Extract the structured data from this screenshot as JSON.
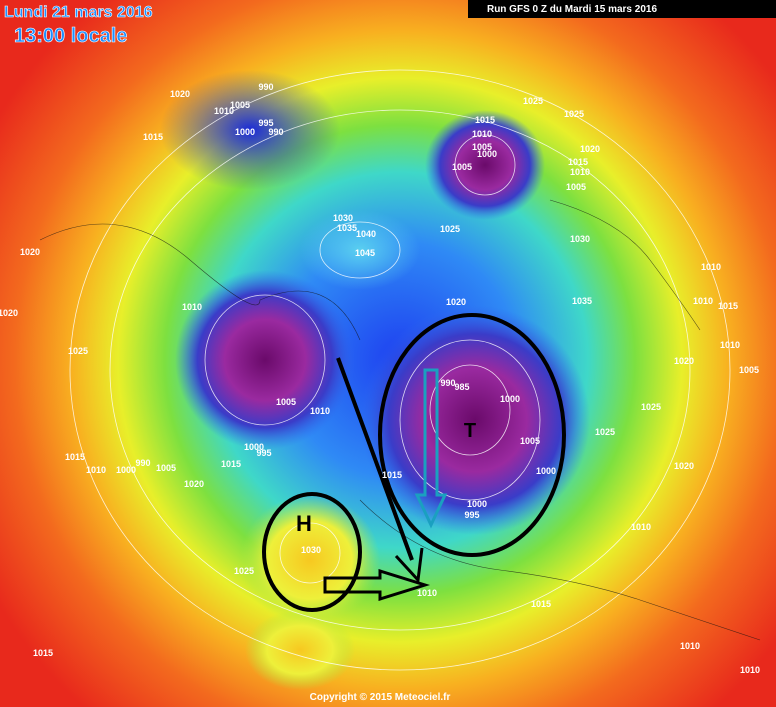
{
  "header": {
    "date": "Lundi 21 mars 2016",
    "time": "13:00 locale",
    "run": "Run GFS 0 Z du Mardi 15 mars 2016"
  },
  "map": {
    "high_label": "H",
    "low_label": "T",
    "isobar_labels": [
      1020,
      1005,
      990,
      1010,
      995,
      1000,
      990,
      1015,
      1025,
      1015,
      1010,
      1005,
      1000,
      1005,
      1025,
      1020,
      1015,
      1010,
      1005,
      1030,
      1030,
      1035,
      1040,
      1025,
      1045,
      1020,
      1010,
      1035,
      1020,
      1010,
      1010,
      1015,
      1020,
      1025,
      1010,
      1005,
      1020,
      990,
      985,
      1000,
      1005,
      1010,
      1025,
      1025,
      1005,
      1000,
      995,
      1015,
      1010,
      1000,
      990,
      1005,
      1015,
      1020,
      1015,
      1000,
      1020,
      1000,
      995,
      1010,
      1030,
      1025,
      1010,
      1015,
      1015,
      1010,
      1010
    ]
  },
  "footer": {
    "copyright": "Copyright © 2015 Meteociel.fr"
  }
}
